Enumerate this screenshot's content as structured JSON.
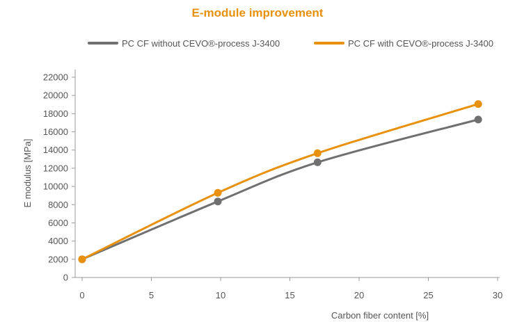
{
  "chart_data": {
    "type": "line",
    "title": "E-module improvement",
    "xlabel": "Carbon fiber content [%]",
    "ylabel": "E modulus [MPa]",
    "xlim": [
      0,
      30
    ],
    "ylim": [
      0,
      22000
    ],
    "xticks": [
      0,
      5,
      10,
      15,
      20,
      25,
      30
    ],
    "yticks": [
      0,
      2000,
      4000,
      6000,
      8000,
      10000,
      12000,
      14000,
      16000,
      18000,
      20000,
      22000
    ],
    "grid": false,
    "legend_position": "top",
    "series": [
      {
        "name": "PC CF without CEVO®-process J-3400",
        "color": "#707070",
        "x": [
          0,
          9.8,
          17,
          28.6
        ],
        "y": [
          2000,
          8350,
          12650,
          17350
        ]
      },
      {
        "name": "PC CF with CEVO®-process J-3400",
        "color": "#e8910f",
        "x": [
          0,
          9.8,
          17,
          28.6
        ],
        "y": [
          2000,
          9300,
          13650,
          19050
        ]
      }
    ]
  }
}
